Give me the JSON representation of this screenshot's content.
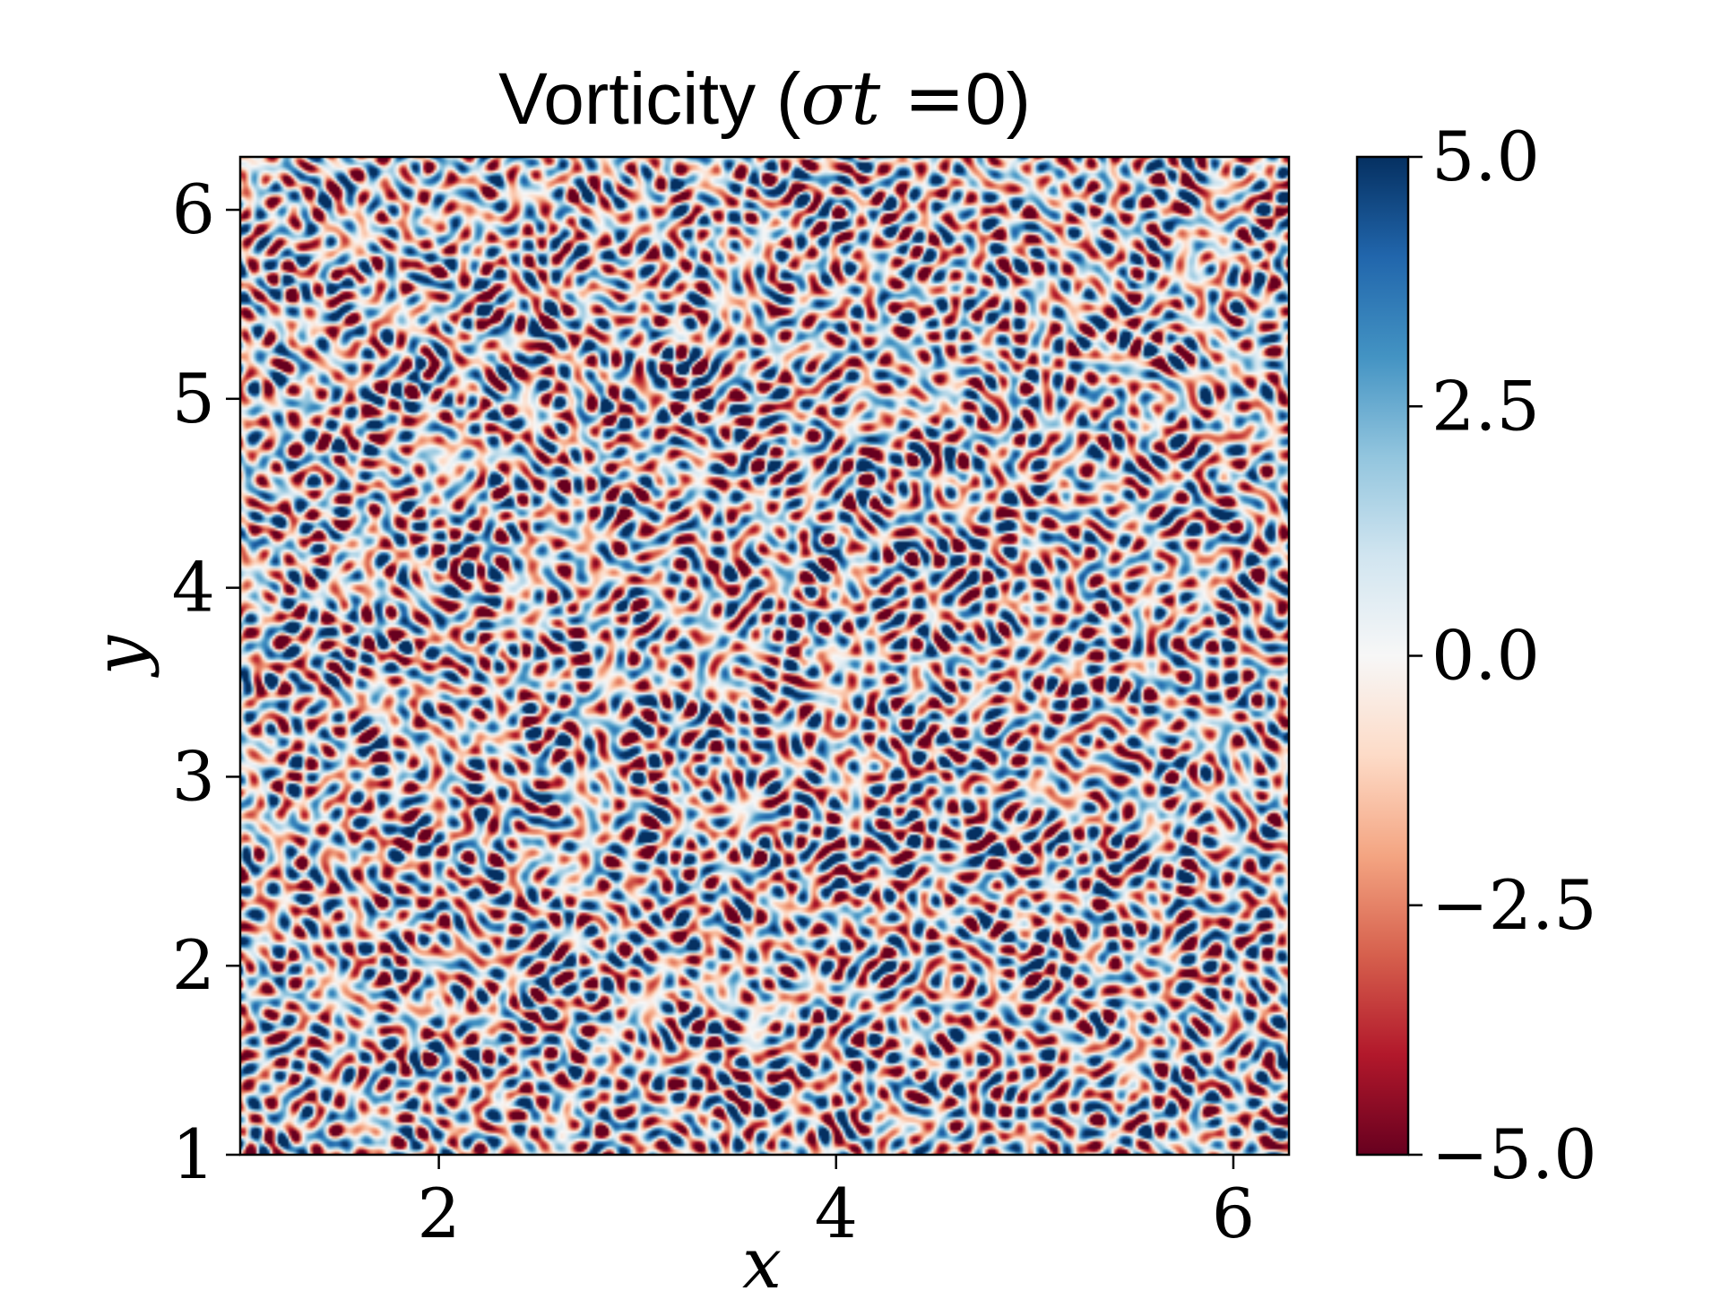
{
  "chart_data": {
    "type": "heatmap",
    "title": {
      "prefix": "Vorticity (",
      "variable": "σt",
      "equals": " =",
      "value": "0",
      "suffix": ")"
    },
    "xlabel": "x",
    "ylabel": "y",
    "xlim": [
      1,
      6.28
    ],
    "ylim": [
      1,
      6.28
    ],
    "xticks": [
      2,
      4,
      6
    ],
    "xtick_labels": [
      "2",
      "4",
      "6"
    ],
    "yticks": [
      1,
      2,
      3,
      4,
      5,
      6
    ],
    "ytick_labels": [
      "1",
      "2",
      "3",
      "4",
      "5",
      "6"
    ],
    "colorbar": {
      "range": [
        -5.0,
        5.0
      ],
      "ticks": [
        5.0,
        2.5,
        0.0,
        -2.5,
        -5.0
      ],
      "tick_labels": [
        "5.0",
        "2.5",
        "0.0",
        "−2.5",
        "−5.0"
      ],
      "colormap": "RdBu",
      "colors": [
        "#67001f",
        "#b2182b",
        "#d6604d",
        "#f4a582",
        "#fddbc7",
        "#f7f7f7",
        "#d1e5f0",
        "#92c5de",
        "#4393c3",
        "#2166ac",
        "#053061"
      ]
    },
    "field": "random turbulent vorticity field, values saturating near ±5"
  }
}
